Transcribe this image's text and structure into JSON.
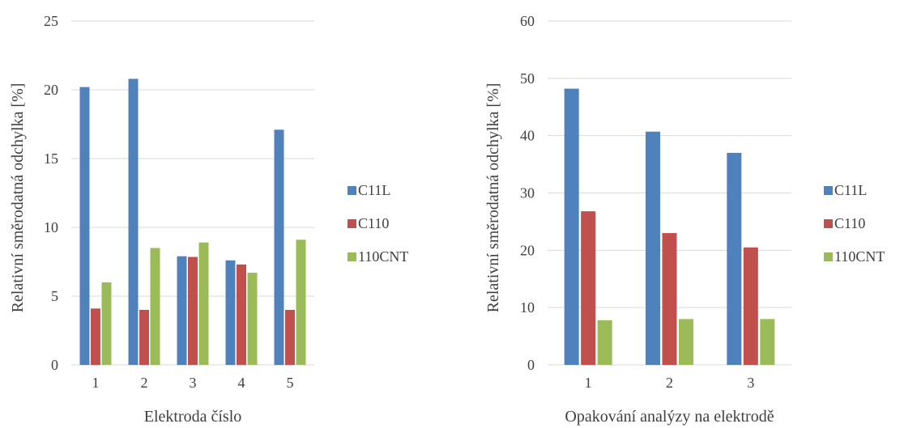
{
  "colors": {
    "C11L": "#4f81bd",
    "C110": "#c0504d",
    "110CNT": "#9bbb59",
    "grid": "#d9d9d9",
    "text": "#404040"
  },
  "chart_data": [
    {
      "type": "bar",
      "title": "",
      "xlabel": "Elektroda číslo",
      "ylabel": "Relativní směrodatná odchylka [%]",
      "ylim": [
        0,
        25
      ],
      "yticks": [
        0,
        5,
        10,
        15,
        20,
        25
      ],
      "grid": true,
      "legend": "right",
      "categories": [
        "1",
        "2",
        "3",
        "4",
        "5"
      ],
      "series": [
        {
          "name": "C11L",
          "values": [
            20.2,
            20.8,
            7.9,
            7.6,
            17.1
          ]
        },
        {
          "name": "C110",
          "values": [
            4.1,
            4.0,
            7.85,
            7.3,
            4.0
          ]
        },
        {
          "name": "110CNT",
          "values": [
            6.0,
            8.5,
            8.9,
            6.7,
            9.1
          ]
        }
      ]
    },
    {
      "type": "bar",
      "title": "",
      "xlabel": "Opakování analýzy na elektrodě",
      "ylabel": "Relativní směrodatná odchylka [%]",
      "ylim": [
        0,
        60
      ],
      "yticks": [
        0,
        10,
        20,
        30,
        40,
        50,
        60
      ],
      "grid": true,
      "legend": "right",
      "categories": [
        "1",
        "2",
        "3"
      ],
      "series": [
        {
          "name": "C11L",
          "values": [
            48.2,
            40.7,
            37.0
          ]
        },
        {
          "name": "C110",
          "values": [
            26.8,
            23.0,
            20.5
          ]
        },
        {
          "name": "110CNT",
          "values": [
            7.8,
            8.0,
            8.0
          ]
        }
      ]
    }
  ]
}
